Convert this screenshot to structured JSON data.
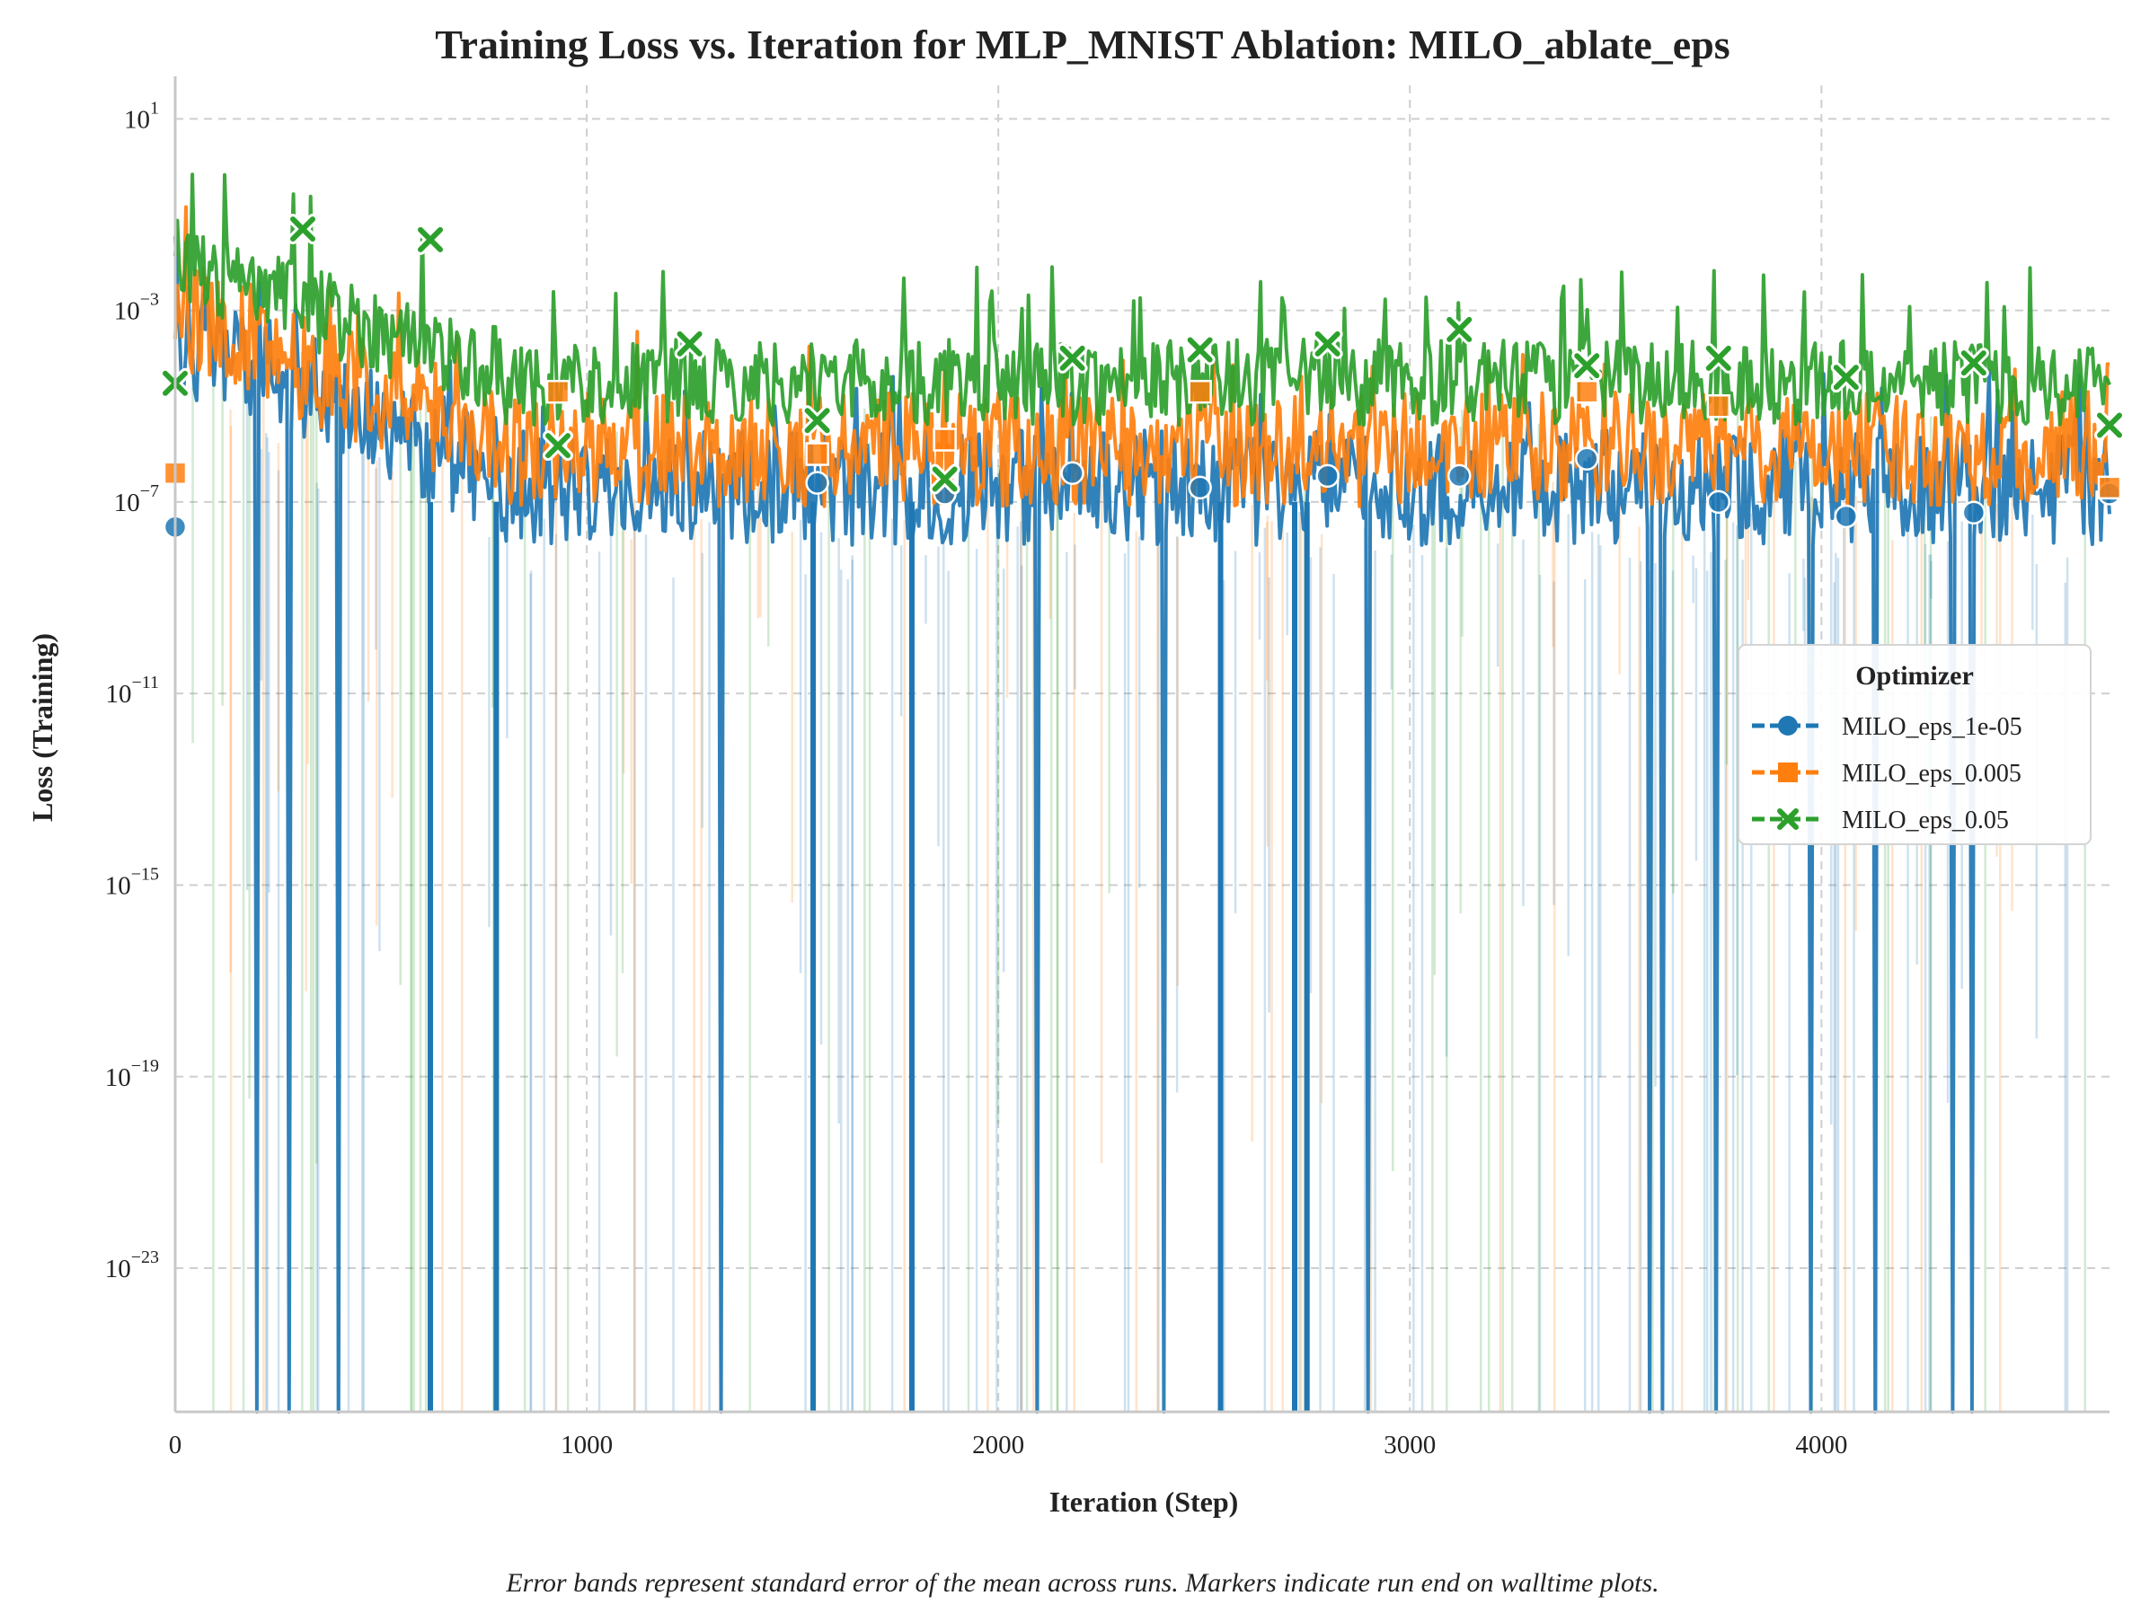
{
  "chart_data": {
    "type": "line",
    "title": "Training Loss vs. Iteration for MLP_MNIST Ablation: MILO_ablate_eps",
    "xlabel": "Iteration (Step)",
    "ylabel": "Loss (Training)",
    "yscale": "log",
    "xlim": [
      0,
      4700
    ],
    "ylim_log10": [
      -26,
      1.7
    ],
    "x_ticks": [
      {
        "value": 0,
        "label": "0"
      },
      {
        "value": 1000,
        "label": "1000"
      },
      {
        "value": 2000,
        "label": "2000"
      },
      {
        "value": 3000,
        "label": "3000"
      },
      {
        "value": 4000,
        "label": "4000"
      }
    ],
    "y_ticks": [
      {
        "exp": 1,
        "base": "10",
        "sup": "1"
      },
      {
        "exp": -3,
        "base": "10",
        "sup": "−3"
      },
      {
        "exp": -7,
        "base": "10",
        "sup": "−7"
      },
      {
        "exp": -11,
        "base": "10",
        "sup": "−11"
      },
      {
        "exp": -15,
        "base": "10",
        "sup": "−15"
      },
      {
        "exp": -19,
        "base": "10",
        "sup": "−19"
      },
      {
        "exp": -23,
        "base": "10",
        "sup": "−23"
      }
    ],
    "grid": true,
    "legend": {
      "title": "Optimizer",
      "placement": "center-right",
      "entries": [
        "MILO_eps_1e-05",
        "MILO_eps_0.005",
        "MILO_eps_0.05"
      ]
    },
    "series": [
      {
        "name": "MILO_eps_1e-05",
        "color": "#1f77b4",
        "marker": "circle",
        "marker_points": [
          {
            "x": 0,
            "y": 3e-08
          },
          {
            "x": 1560,
            "y": 2.5e-07
          },
          {
            "x": 1870,
            "y": 1.5e-07
          },
          {
            "x": 2180,
            "y": 4e-07
          },
          {
            "x": 2490,
            "y": 2e-07
          },
          {
            "x": 2800,
            "y": 3.5e-07
          },
          {
            "x": 3120,
            "y": 3.5e-07
          },
          {
            "x": 3430,
            "y": 8e-07
          },
          {
            "x": 3750,
            "y": 1e-07
          },
          {
            "x": 4060,
            "y": 5e-08
          },
          {
            "x": 4370,
            "y": 6e-08
          },
          {
            "x": 4700,
            "y": 1.5e-07
          }
        ]
      },
      {
        "name": "MILO_eps_0.005",
        "color": "#ff7f0e",
        "marker": "square",
        "marker_points": [
          {
            "x": 0,
            "y": 4e-07
          },
          {
            "x": 930,
            "y": 2e-05
          },
          {
            "x": 1560,
            "y": 1e-06
          },
          {
            "x": 1870,
            "y": 2e-06
          },
          {
            "x": 2490,
            "y": 2e-05
          },
          {
            "x": 3430,
            "y": 2e-05
          },
          {
            "x": 3750,
            "y": 1e-05
          },
          {
            "x": 4700,
            "y": 2e-07
          }
        ]
      },
      {
        "name": "MILO_eps_0.05",
        "color": "#2ca02c",
        "marker": "x",
        "marker_points": [
          {
            "x": 0,
            "y": 3e-05
          },
          {
            "x": 310,
            "y": 0.05
          },
          {
            "x": 620,
            "y": 0.03
          },
          {
            "x": 930,
            "y": 1.5e-06
          },
          {
            "x": 1250,
            "y": 0.0002
          },
          {
            "x": 1560,
            "y": 5e-06
          },
          {
            "x": 1870,
            "y": 3e-07
          },
          {
            "x": 2180,
            "y": 0.0001
          },
          {
            "x": 2490,
            "y": 0.00015
          },
          {
            "x": 2800,
            "y": 0.0002
          },
          {
            "x": 3120,
            "y": 0.0004
          },
          {
            "x": 3430,
            "y": 7e-05
          },
          {
            "x": 3750,
            "y": 0.0001
          },
          {
            "x": 4060,
            "y": 4e-05
          },
          {
            "x": 4370,
            "y": 8e-05
          },
          {
            "x": 4700,
            "y": 4e-06
          }
        ]
      }
    ],
    "caption": "Error bands represent standard error of the mean across runs. Markers indicate run end on walltime plots."
  }
}
